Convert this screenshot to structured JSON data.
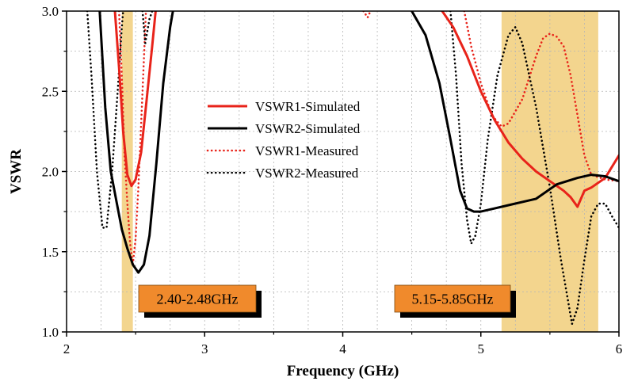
{
  "chart_data": {
    "type": "line",
    "xlabel": "Frequency (GHz)",
    "ylabel": "VSWR",
    "xlim": [
      2,
      6
    ],
    "ylim": [
      1.0,
      3.0
    ],
    "xticks": [
      "2",
      "3",
      "4",
      "5",
      "6"
    ],
    "yticks": [
      "1.0",
      "1.5",
      "2.0",
      "2.5",
      "3.0"
    ],
    "grid": true,
    "legend_position": "center-left",
    "bands": [
      {
        "label": "2.40-2.48GHz",
        "x": [
          2.4,
          2.48
        ],
        "color": "#f3d58e",
        "label_color": "#f08a2c"
      },
      {
        "label": "5.15-5.85GHz",
        "x": [
          5.15,
          5.85
        ],
        "color": "#f3d58e",
        "label_color": "#f08a2c"
      }
    ],
    "series": [
      {
        "name": "VSWR1-Simulated",
        "color": "#e8231a",
        "style": "solid",
        "segments": [
          [
            [
              2.35,
              3.0
            ],
            [
              2.38,
              2.65
            ],
            [
              2.41,
              2.25
            ],
            [
              2.44,
              1.98
            ],
            [
              2.47,
              1.91
            ],
            [
              2.5,
              1.95
            ],
            [
              2.54,
              2.12
            ],
            [
              2.58,
              2.45
            ],
            [
              2.62,
              2.78
            ],
            [
              2.645,
              3.0
            ]
          ],
          [
            [
              4.72,
              3.0
            ],
            [
              4.8,
              2.9
            ],
            [
              4.9,
              2.72
            ],
            [
              5.0,
              2.5
            ],
            [
              5.1,
              2.32
            ],
            [
              5.2,
              2.18
            ],
            [
              5.3,
              2.08
            ],
            [
              5.4,
              2.0
            ],
            [
              5.5,
              1.94
            ],
            [
              5.6,
              1.88
            ],
            [
              5.65,
              1.84
            ],
            [
              5.7,
              1.78
            ],
            [
              5.75,
              1.88
            ],
            [
              5.8,
              1.9
            ],
            [
              5.9,
              1.96
            ],
            [
              6.0,
              2.1
            ]
          ]
        ]
      },
      {
        "name": "VSWR2-Simulated",
        "color": "#000000",
        "style": "solid",
        "segments": [
          [
            [
              2.24,
              3.0
            ],
            [
              2.28,
              2.4
            ],
            [
              2.32,
              2.0
            ],
            [
              2.36,
              1.82
            ],
            [
              2.4,
              1.64
            ],
            [
              2.44,
              1.52
            ],
            [
              2.48,
              1.42
            ],
            [
              2.52,
              1.37
            ],
            [
              2.56,
              1.42
            ],
            [
              2.6,
              1.6
            ],
            [
              2.65,
              2.05
            ],
            [
              2.7,
              2.55
            ],
            [
              2.75,
              2.9
            ],
            [
              2.77,
              3.0
            ]
          ],
          [
            [
              4.5,
              3.0
            ],
            [
              4.6,
              2.85
            ],
            [
              4.7,
              2.55
            ],
            [
              4.78,
              2.2
            ],
            [
              4.85,
              1.88
            ],
            [
              4.9,
              1.77
            ],
            [
              4.95,
              1.75
            ],
            [
              5.0,
              1.75
            ],
            [
              5.1,
              1.77
            ],
            [
              5.2,
              1.79
            ],
            [
              5.4,
              1.83
            ],
            [
              5.55,
              1.92
            ],
            [
              5.7,
              1.96
            ],
            [
              5.8,
              1.98
            ],
            [
              5.9,
              1.97
            ],
            [
              6.0,
              1.94
            ]
          ]
        ]
      },
      {
        "name": "VSWR1-Measured",
        "color": "#e8231a",
        "style": "dotted",
        "segments": [
          [
            [
              2.38,
              3.0
            ],
            [
              2.4,
              2.6
            ],
            [
              2.42,
              2.1
            ],
            [
              2.44,
              1.8
            ],
            [
              2.46,
              1.55
            ],
            [
              2.48,
              1.42
            ],
            [
              2.5,
              1.58
            ],
            [
              2.52,
              1.9
            ],
            [
              2.54,
              2.3
            ],
            [
              2.56,
              2.7
            ],
            [
              2.575,
              3.0
            ]
          ],
          [
            [
              4.15,
              3.0
            ],
            [
              4.18,
              2.96
            ],
            [
              4.2,
              3.0
            ]
          ],
          [
            [
              4.88,
              3.0
            ],
            [
              4.93,
              2.78
            ],
            [
              5.0,
              2.55
            ],
            [
              5.08,
              2.35
            ],
            [
              5.15,
              2.28
            ],
            [
              5.2,
              2.3
            ],
            [
              5.3,
              2.45
            ],
            [
              5.4,
              2.72
            ],
            [
              5.45,
              2.83
            ],
            [
              5.5,
              2.86
            ],
            [
              5.55,
              2.84
            ],
            [
              5.6,
              2.78
            ],
            [
              5.65,
              2.6
            ],
            [
              5.7,
              2.35
            ],
            [
              5.75,
              2.1
            ],
            [
              5.8,
              1.98
            ],
            [
              5.9,
              1.95
            ],
            [
              6.0,
              1.94
            ]
          ]
        ]
      },
      {
        "name": "VSWR2-Measured",
        "color": "#000000",
        "style": "dotted",
        "segments": [
          [
            [
              2.15,
              3.0
            ],
            [
              2.18,
              2.6
            ],
            [
              2.22,
              2.0
            ],
            [
              2.26,
              1.65
            ],
            [
              2.29,
              1.65
            ],
            [
              2.33,
              2.0
            ],
            [
              2.37,
              2.5
            ],
            [
              2.4,
              2.9
            ],
            [
              2.41,
              3.0
            ]
          ],
          [
            [
              2.55,
              3.0
            ],
            [
              2.57,
              2.8
            ],
            [
              2.6,
              2.95
            ],
            [
              2.62,
              3.0
            ]
          ],
          [
            [
              4.78,
              3.0
            ],
            [
              4.82,
              2.6
            ],
            [
              4.86,
              2.05
            ],
            [
              4.9,
              1.7
            ],
            [
              4.93,
              1.55
            ],
            [
              4.96,
              1.6
            ],
            [
              5.0,
              1.8
            ],
            [
              5.05,
              2.2
            ],
            [
              5.12,
              2.6
            ],
            [
              5.2,
              2.85
            ],
            [
              5.25,
              2.9
            ],
            [
              5.3,
              2.8
            ],
            [
              5.4,
              2.4
            ],
            [
              5.5,
              1.9
            ],
            [
              5.58,
              1.45
            ],
            [
              5.64,
              1.15
            ],
            [
              5.66,
              1.05
            ],
            [
              5.7,
              1.15
            ],
            [
              5.75,
              1.45
            ],
            [
              5.8,
              1.72
            ],
            [
              5.85,
              1.8
            ],
            [
              5.9,
              1.8
            ],
            [
              5.95,
              1.72
            ],
            [
              6.0,
              1.65
            ]
          ]
        ]
      }
    ]
  }
}
